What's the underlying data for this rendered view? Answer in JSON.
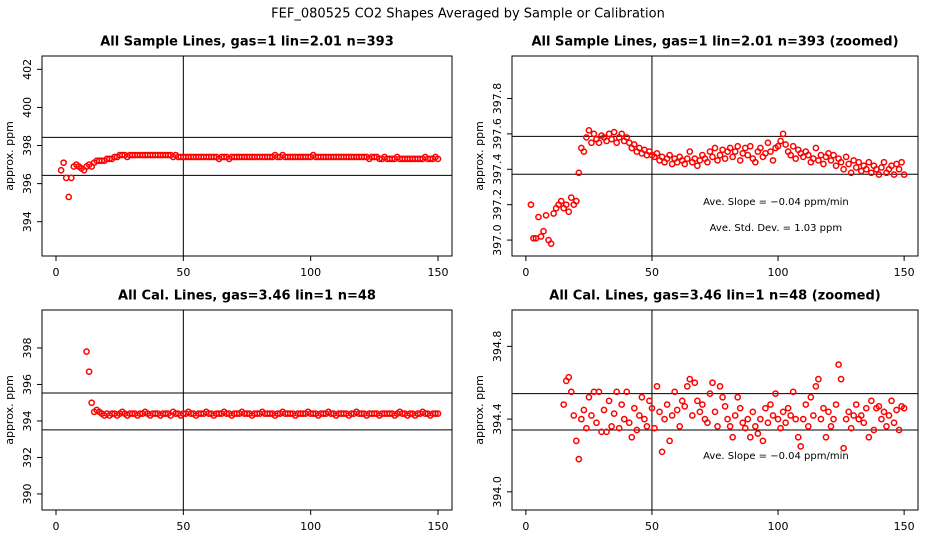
{
  "title": "FEF_080525  CO2 Shapes Averaged by Sample or Calibration",
  "chart_data": [
    {
      "type": "scatter",
      "title": "All Sample Lines, gas=1 lin=2.01 n=393",
      "ylabel": "approx. ppm",
      "color": "#ff0000",
      "xlim": [
        -5.5,
        155.5
      ],
      "ylim": [
        392.2,
        402.7
      ],
      "xticks": [
        0,
        50,
        100,
        150
      ],
      "yticks": [
        394,
        396,
        398,
        400,
        402
      ],
      "hlines": [
        398.43,
        396.43
      ],
      "vline": 50,
      "annotations": [],
      "x": [
        2,
        3,
        4,
        5,
        6,
        7,
        8,
        9,
        10,
        11,
        12,
        13,
        14,
        15,
        16,
        17,
        18,
        19,
        20,
        21,
        22,
        23,
        24,
        25,
        26,
        27,
        28,
        29,
        30,
        31,
        32,
        33,
        34,
        35,
        36,
        37,
        38,
        39,
        40,
        41,
        42,
        43,
        44,
        45,
        46,
        47,
        48,
        49,
        50,
        51,
        52,
        53,
        54,
        55,
        56,
        57,
        58,
        59,
        60,
        61,
        62,
        63,
        64,
        65,
        66,
        67,
        68,
        69,
        70,
        71,
        72,
        73,
        74,
        75,
        76,
        77,
        78,
        79,
        80,
        81,
        82,
        83,
        84,
        85,
        86,
        87,
        88,
        89,
        90,
        91,
        92,
        93,
        94,
        95,
        96,
        97,
        98,
        99,
        100,
        101,
        102,
        103,
        104,
        105,
        106,
        107,
        108,
        109,
        110,
        111,
        112,
        113,
        114,
        115,
        116,
        117,
        118,
        119,
        120,
        121,
        122,
        123,
        124,
        125,
        126,
        127,
        128,
        129,
        130,
        131,
        132,
        133,
        134,
        135,
        136,
        137,
        138,
        139,
        140,
        141,
        142,
        143,
        144,
        145,
        146,
        147,
        148,
        149,
        150
      ],
      "values": [
        396.7,
        397.1,
        396.3,
        395.3,
        396.3,
        396.9,
        397.0,
        396.9,
        396.8,
        396.7,
        396.9,
        397.0,
        396.9,
        397.1,
        397.2,
        397.2,
        397.2,
        397.2,
        397.3,
        397.3,
        397.3,
        397.4,
        397.4,
        397.5,
        397.5,
        397.5,
        397.4,
        397.5,
        397.5,
        397.5,
        397.5,
        397.5,
        397.5,
        397.5,
        397.5,
        397.5,
        397.5,
        397.5,
        397.5,
        397.5,
        397.5,
        397.5,
        397.5,
        397.5,
        397.4,
        397.5,
        397.4,
        397.4,
        397.4,
        397.4,
        397.4,
        397.4,
        397.4,
        397.4,
        397.4,
        397.4,
        397.4,
        397.4,
        397.4,
        397.4,
        397.4,
        397.4,
        397.3,
        397.4,
        397.4,
        397.4,
        397.3,
        397.4,
        397.4,
        397.4,
        397.4,
        397.4,
        397.4,
        397.4,
        397.4,
        397.4,
        397.4,
        397.4,
        397.4,
        397.4,
        397.4,
        397.4,
        397.4,
        397.4,
        397.5,
        397.4,
        397.4,
        397.5,
        397.4,
        397.4,
        397.4,
        397.4,
        397.4,
        397.4,
        397.4,
        397.4,
        397.4,
        397.4,
        397.4,
        397.5,
        397.4,
        397.4,
        397.4,
        397.4,
        397.4,
        397.4,
        397.4,
        397.4,
        397.4,
        397.4,
        397.4,
        397.4,
        397.4,
        397.4,
        397.4,
        397.4,
        397.4,
        397.4,
        397.4,
        397.4,
        397.4,
        397.3,
        397.4,
        397.4,
        397.4,
        397.3,
        397.3,
        397.4,
        397.3,
        397.3,
        397.3,
        397.3,
        397.4,
        397.3,
        397.3,
        397.3,
        397.3,
        397.3,
        397.3,
        397.3,
        397.3,
        397.3,
        397.3,
        397.4,
        397.3,
        397.3,
        397.3,
        397.4,
        397.3
      ]
    },
    {
      "type": "scatter",
      "title": "All Sample Lines, gas=1 lin=2.01 n=393 (zoomed)",
      "ylabel": "approx. ppm",
      "color": "#ff0000",
      "xlim": [
        -5.5,
        155.5
      ],
      "ylim": [
        396.91,
        398.04
      ],
      "xticks": [
        0,
        50,
        100,
        150
      ],
      "yticks": [
        {
          "value": 397,
          "label": "397.0"
        },
        397.2,
        397.4,
        397.6,
        397.8
      ],
      "hlines": [
        397.586,
        397.372
      ],
      "vline": 50,
      "annotations": [
        "Ave. Slope =  −0.04  ppm/min",
        "Ave. Std. Dev. =  1.03  ppm"
      ],
      "x": [
        2,
        3,
        4,
        5,
        6,
        7,
        8,
        9,
        10,
        11,
        12,
        13,
        14,
        15,
        16,
        17,
        18,
        19,
        20,
        21,
        22,
        23,
        24,
        25,
        26,
        27,
        28,
        29,
        30,
        31,
        32,
        33,
        34,
        35,
        36,
        37,
        38,
        39,
        40,
        41,
        42,
        43,
        44,
        45,
        46,
        47,
        48,
        49,
        50,
        51,
        52,
        53,
        54,
        55,
        56,
        57,
        58,
        59,
        60,
        61,
        62,
        63,
        64,
        65,
        66,
        67,
        68,
        69,
        70,
        71,
        72,
        73,
        74,
        75,
        76,
        77,
        78,
        79,
        80,
        81,
        82,
        83,
        84,
        85,
        86,
        87,
        88,
        89,
        90,
        91,
        92,
        93,
        94,
        95,
        96,
        97,
        98,
        99,
        100,
        101,
        102,
        103,
        104,
        105,
        106,
        107,
        108,
        109,
        110,
        111,
        112,
        113,
        114,
        115,
        116,
        117,
        118,
        119,
        120,
        121,
        122,
        123,
        124,
        125,
        126,
        127,
        128,
        129,
        130,
        131,
        132,
        133,
        134,
        135,
        136,
        137,
        138,
        139,
        140,
        141,
        142,
        143,
        144,
        145,
        146,
        147,
        148,
        149,
        150
      ],
      "values": [
        397.2,
        397.01,
        397.01,
        397.13,
        397.02,
        397.05,
        397.14,
        397.0,
        396.98,
        397.15,
        397.18,
        397.2,
        397.22,
        397.18,
        397.2,
        397.16,
        397.24,
        397.2,
        397.22,
        397.38,
        397.52,
        397.5,
        397.58,
        397.62,
        397.55,
        397.6,
        397.57,
        397.55,
        397.59,
        397.58,
        397.56,
        397.6,
        397.57,
        397.61,
        397.55,
        397.58,
        397.6,
        397.56,
        397.58,
        397.55,
        397.52,
        397.54,
        397.5,
        397.52,
        397.49,
        397.51,
        397.48,
        397.5,
        397.48,
        397.47,
        397.49,
        397.45,
        397.47,
        397.44,
        397.46,
        397.48,
        397.43,
        397.46,
        397.44,
        397.47,
        397.45,
        397.43,
        397.46,
        397.5,
        397.44,
        397.46,
        397.42,
        397.45,
        397.48,
        397.46,
        397.44,
        397.5,
        397.47,
        397.52,
        397.45,
        397.48,
        397.51,
        397.46,
        397.5,
        397.52,
        397.47,
        397.5,
        397.53,
        397.45,
        397.49,
        397.52,
        397.48,
        397.53,
        397.46,
        397.44,
        397.5,
        397.52,
        397.47,
        397.49,
        397.55,
        397.5,
        397.45,
        397.52,
        397.53,
        397.56,
        397.6,
        397.54,
        397.5,
        397.48,
        397.53,
        397.46,
        397.51,
        397.49,
        397.47,
        397.5,
        397.48,
        397.44,
        397.46,
        397.52,
        397.45,
        397.48,
        397.43,
        397.47,
        397.49,
        397.45,
        397.48,
        397.42,
        397.46,
        397.44,
        397.4,
        397.47,
        397.43,
        397.38,
        397.45,
        397.41,
        397.44,
        397.39,
        397.42,
        397.4,
        397.44,
        397.38,
        397.42,
        397.4,
        397.37,
        397.41,
        397.44,
        397.38,
        397.4,
        397.42,
        397.37,
        397.43,
        397.4,
        397.44,
        397.37
      ]
    },
    {
      "type": "scatter",
      "title": "All Cal. Lines, gas=3.46 lin=1 n=48",
      "ylabel": "approx. ppm",
      "color": "#ff0000",
      "xlim": [
        -5.5,
        155.5
      ],
      "ylim": [
        389.12,
        400.08
      ],
      "xticks": [
        0,
        50,
        100,
        150
      ],
      "yticks": [
        390,
        392,
        394,
        396,
        398
      ],
      "hlines": [
        395.53,
        393.51
      ],
      "vline": 50,
      "annotations": [],
      "x": [
        12,
        13,
        14,
        15,
        16,
        17,
        18,
        19,
        20,
        21,
        22,
        23,
        24,
        25,
        26,
        27,
        28,
        29,
        30,
        31,
        32,
        33,
        34,
        35,
        36,
        37,
        38,
        39,
        40,
        41,
        42,
        43,
        44,
        45,
        46,
        47,
        48,
        49,
        50,
        51,
        52,
        53,
        54,
        55,
        56,
        57,
        58,
        59,
        60,
        61,
        62,
        63,
        64,
        65,
        66,
        67,
        68,
        69,
        70,
        71,
        72,
        73,
        74,
        75,
        76,
        77,
        78,
        79,
        80,
        81,
        82,
        83,
        84,
        85,
        86,
        87,
        88,
        89,
        90,
        91,
        92,
        93,
        94,
        95,
        96,
        97,
        98,
        99,
        100,
        101,
        102,
        103,
        104,
        105,
        106,
        107,
        108,
        109,
        110,
        111,
        112,
        113,
        114,
        115,
        116,
        117,
        118,
        119,
        120,
        121,
        122,
        123,
        124,
        125,
        126,
        127,
        128,
        129,
        130,
        131,
        132,
        133,
        134,
        135,
        136,
        137,
        138,
        139,
        140,
        141,
        142,
        143,
        144,
        145,
        146,
        147,
        148,
        149,
        150
      ],
      "values": [
        397.8,
        396.7,
        395.0,
        394.5,
        394.6,
        394.5,
        394.4,
        394.3,
        394.4,
        394.3,
        394.4,
        394.4,
        394.3,
        394.4,
        394.5,
        394.4,
        394.3,
        394.4,
        394.4,
        394.4,
        394.3,
        394.4,
        394.4,
        394.5,
        394.4,
        394.3,
        394.4,
        394.4,
        394.4,
        394.3,
        394.4,
        394.4,
        394.4,
        394.3,
        394.5,
        394.4,
        394.4,
        394.3,
        394.4,
        394.4,
        394.5,
        394.4,
        394.4,
        394.3,
        394.4,
        394.4,
        394.4,
        394.5,
        394.4,
        394.4,
        394.3,
        394.4,
        394.4,
        394.4,
        394.5,
        394.4,
        394.4,
        394.3,
        394.4,
        394.4,
        394.4,
        394.5,
        394.4,
        394.4,
        394.4,
        394.3,
        394.4,
        394.4,
        394.4,
        394.5,
        394.4,
        394.4,
        394.4,
        394.4,
        394.3,
        394.4,
        394.4,
        394.5,
        394.4,
        394.4,
        394.4,
        394.4,
        394.3,
        394.4,
        394.4,
        394.4,
        394.4,
        394.5,
        394.4,
        394.4,
        394.4,
        394.3,
        394.4,
        394.4,
        394.4,
        394.5,
        394.4,
        394.4,
        394.3,
        394.4,
        394.4,
        394.4,
        394.4,
        394.3,
        394.4,
        394.4,
        394.5,
        394.4,
        394.4,
        394.4,
        394.3,
        394.4,
        394.4,
        394.4,
        394.4,
        394.3,
        394.4,
        394.4,
        394.4,
        394.4,
        394.4,
        394.3,
        394.4,
        394.5,
        394.4,
        394.4,
        394.3,
        394.4,
        394.4,
        394.3,
        394.4,
        394.4,
        394.5,
        394.4,
        394.4,
        394.3,
        394.4,
        394.4,
        394.4
      ]
    },
    {
      "type": "scatter",
      "title": "All Cal. Lines, gas=3.46 lin=1 n=48 (zoomed)",
      "ylabel": "approx. ppm",
      "color": "#ff0000",
      "xlim": [
        -5.5,
        155.5
      ],
      "ylim": [
        393.9,
        395.0
      ],
      "xticks": [
        0,
        50,
        100,
        150
      ],
      "yticks": [
        {
          "value": 394,
          "label": "394.0"
        },
        394.4,
        394.8
      ],
      "hlines": [
        394.54,
        394.34
      ],
      "vline": 50,
      "annotations": [
        "Ave. Slope =  −0.04  ppm/min"
      ],
      "x": [
        15,
        16,
        17,
        18,
        19,
        20,
        21,
        22,
        23,
        24,
        25,
        26,
        27,
        28,
        29,
        30,
        31,
        32,
        33,
        34,
        35,
        36,
        37,
        38,
        39,
        40,
        41,
        42,
        43,
        44,
        45,
        46,
        47,
        48,
        49,
        50,
        51,
        52,
        53,
        54,
        55,
        56,
        57,
        58,
        59,
        60,
        61,
        62,
        63,
        64,
        65,
        66,
        67,
        68,
        69,
        70,
        71,
        72,
        73,
        74,
        75,
        76,
        77,
        78,
        79,
        80,
        81,
        82,
        83,
        84,
        85,
        86,
        87,
        88,
        89,
        90,
        91,
        92,
        93,
        94,
        95,
        96,
        97,
        98,
        99,
        100,
        101,
        102,
        103,
        104,
        105,
        106,
        107,
        108,
        109,
        110,
        111,
        112,
        113,
        114,
        115,
        116,
        117,
        118,
        119,
        120,
        121,
        122,
        123,
        124,
        125,
        126,
        127,
        128,
        129,
        130,
        131,
        132,
        133,
        134,
        135,
        136,
        137,
        138,
        139,
        140,
        141,
        142,
        143,
        144,
        145,
        146,
        147,
        148,
        149,
        150
      ],
      "values": [
        394.48,
        394.61,
        394.63,
        394.55,
        394.42,
        394.28,
        394.18,
        394.4,
        394.45,
        394.35,
        394.52,
        394.42,
        394.55,
        394.38,
        394.55,
        394.33,
        394.45,
        394.33,
        394.5,
        394.36,
        394.43,
        394.55,
        394.35,
        394.48,
        394.4,
        394.55,
        394.38,
        394.3,
        394.46,
        394.34,
        394.42,
        394.52,
        394.4,
        394.36,
        394.5,
        394.46,
        394.35,
        394.58,
        394.44,
        394.22,
        394.4,
        394.48,
        394.28,
        394.42,
        394.55,
        394.45,
        394.36,
        394.5,
        394.47,
        394.58,
        394.62,
        394.42,
        394.6,
        394.5,
        394.44,
        394.48,
        394.4,
        394.38,
        394.54,
        394.6,
        394.44,
        394.36,
        394.58,
        394.52,
        394.47,
        394.4,
        394.36,
        394.3,
        394.42,
        394.52,
        394.46,
        394.38,
        394.35,
        394.4,
        394.3,
        394.44,
        394.36,
        394.32,
        394.4,
        394.28,
        394.46,
        394.38,
        394.48,
        394.42,
        394.54,
        394.4,
        394.35,
        394.44,
        394.38,
        394.46,
        394.42,
        394.55,
        394.4,
        394.3,
        394.25,
        394.4,
        394.48,
        394.36,
        394.52,
        394.42,
        394.58,
        394.62,
        394.4,
        394.46,
        394.3,
        394.44,
        394.36,
        394.4,
        394.48,
        394.7,
        394.62,
        394.24,
        394.4,
        394.44,
        394.35,
        394.42,
        394.48,
        394.4,
        394.42,
        394.38,
        394.46,
        394.3,
        394.5,
        394.34,
        394.46,
        394.47,
        394.4,
        394.44,
        394.36,
        394.42,
        394.5,
        394.38,
        394.45,
        394.34,
        394.47,
        394.46
      ]
    }
  ]
}
